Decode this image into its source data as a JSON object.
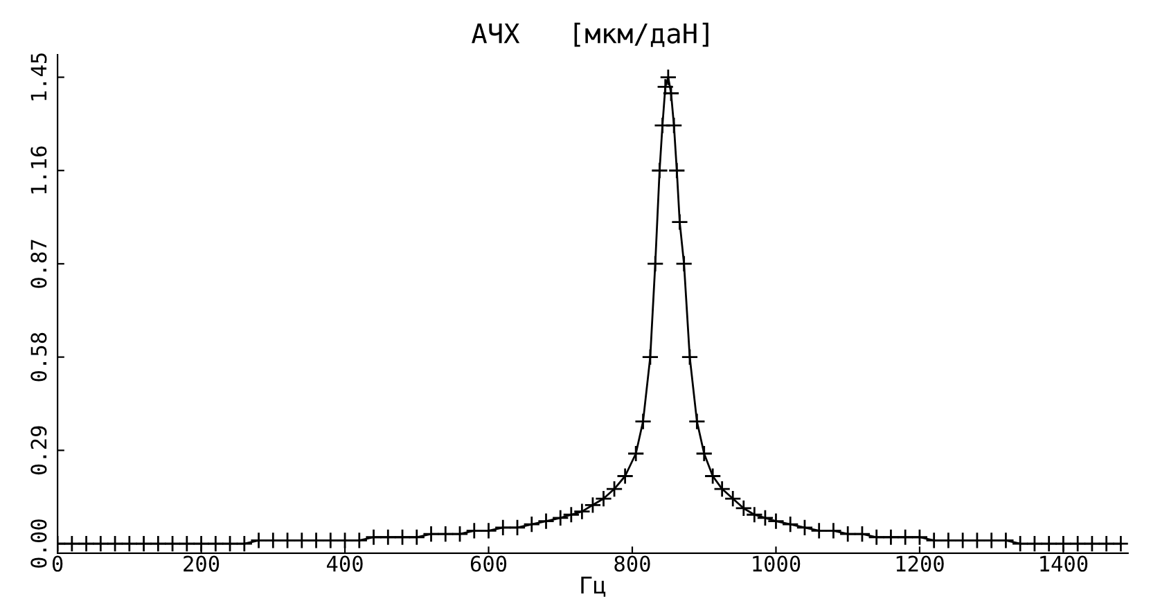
{
  "chart_data": {
    "type": "line",
    "title": "АЧХ   [мкм/даН]",
    "xlabel": "Гц",
    "marker": "cross",
    "line_style": "solid",
    "grid": false,
    "legend": false,
    "xlim": [
      0,
      1490
    ],
    "ylim": [
      -0.03,
      1.52
    ],
    "xticks": [
      0,
      200,
      400,
      600,
      800,
      1000,
      1200,
      1400
    ],
    "yticks": [
      {
        "value": 0,
        "label": "0.00"
      },
      {
        "value": 0.29,
        "label": "0.29"
      },
      {
        "value": 0.58,
        "label": "0.58"
      },
      {
        "value": 0.87,
        "label": "0.87"
      },
      {
        "value": 1.16,
        "label": "1.16"
      },
      {
        "value": 1.45,
        "label": "1.45"
      }
    ],
    "series": [
      {
        "color": "#000000",
        "x": [
          0,
          20,
          40,
          60,
          80,
          100,
          120,
          140,
          160,
          180,
          200,
          220,
          240,
          260,
          280,
          300,
          320,
          340,
          360,
          380,
          400,
          420,
          440,
          460,
          480,
          500,
          520,
          540,
          560,
          580,
          600,
          620,
          640,
          660,
          680,
          700,
          715,
          730,
          745,
          760,
          775,
          790,
          805,
          815,
          825,
          832,
          838,
          842,
          846,
          850,
          854,
          858,
          862,
          866,
          872,
          880,
          890,
          900,
          912,
          925,
          940,
          955,
          970,
          985,
          1000,
          1020,
          1040,
          1060,
          1080,
          1100,
          1120,
          1140,
          1160,
          1180,
          1200,
          1220,
          1240,
          1260,
          1280,
          1300,
          1320,
          1340,
          1360,
          1380,
          1400,
          1420,
          1440,
          1460,
          1480
        ],
        "values": [
          0.0,
          0.0,
          0.0,
          0.0,
          0.0,
          0.0,
          0.0,
          0.0,
          0.0,
          0.0,
          0.0,
          0.0,
          0.0,
          0.0,
          0.01,
          0.01,
          0.01,
          0.01,
          0.01,
          0.01,
          0.01,
          0.01,
          0.02,
          0.02,
          0.02,
          0.02,
          0.03,
          0.03,
          0.03,
          0.04,
          0.04,
          0.05,
          0.05,
          0.06,
          0.07,
          0.08,
          0.09,
          0.1,
          0.12,
          0.14,
          0.17,
          0.21,
          0.28,
          0.38,
          0.58,
          0.87,
          1.16,
          1.3,
          1.42,
          1.45,
          1.4,
          1.3,
          1.16,
          1.0,
          0.87,
          0.58,
          0.38,
          0.28,
          0.21,
          0.17,
          0.14,
          0.11,
          0.09,
          0.08,
          0.07,
          0.06,
          0.05,
          0.04,
          0.04,
          0.03,
          0.03,
          0.02,
          0.02,
          0.02,
          0.02,
          0.01,
          0.01,
          0.01,
          0.01,
          0.01,
          0.01,
          0.0,
          0.0,
          0.0,
          0.0,
          0.0,
          0.0,
          0.0,
          0.0
        ]
      }
    ]
  }
}
